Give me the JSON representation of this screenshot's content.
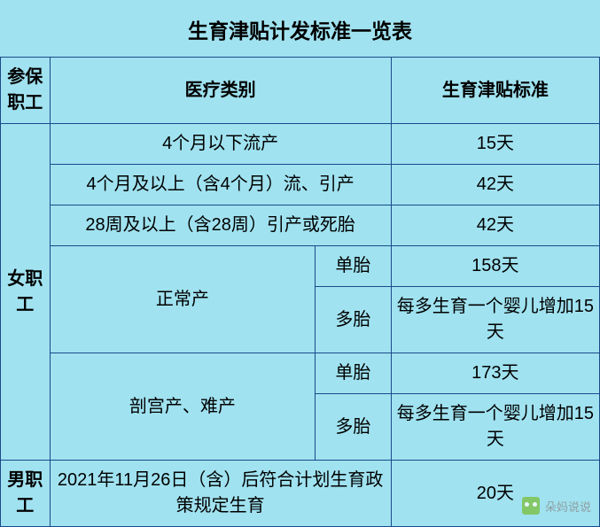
{
  "title": "生育津贴计发标准一览表",
  "colors": {
    "background": "#a0e2f0",
    "border": "#1a4a8a",
    "text": "#000000"
  },
  "header": {
    "c1": "参保职工",
    "c2": "医疗类别",
    "c3": "生育津贴标准"
  },
  "female": {
    "label": "女职工",
    "rows": {
      "r1": {
        "cat": "4个月以下流产",
        "std": "15天"
      },
      "r2": {
        "cat": "4个月及以上（含4个月）流、引产",
        "std": "42天"
      },
      "r3": {
        "cat": "28周及以上（含28周）引产或死胎",
        "std": "42天"
      }
    },
    "normal": {
      "label": "正常产",
      "single": {
        "sub": "单胎",
        "std": "158天"
      },
      "multi": {
        "sub": "多胎",
        "std": "每多生育一个婴儿增加15天"
      }
    },
    "csection": {
      "label": "剖宫产、难产",
      "single": {
        "sub": "单胎",
        "std": "173天"
      },
      "multi": {
        "sub": "多胎",
        "std": "每多生育一个婴儿增加15天"
      }
    }
  },
  "male": {
    "label": "男职工",
    "cat": "2021年11月26日（含）后符合计划生育政策规定生育",
    "std": "20天"
  },
  "watermark": "朵妈说说"
}
